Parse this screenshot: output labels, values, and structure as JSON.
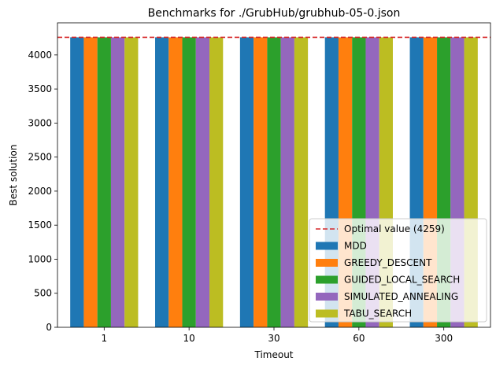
{
  "chart_data": {
    "type": "bar",
    "title": "Benchmarks for ./GrubHub/grubhub-05-0.json",
    "xlabel": "Timeout",
    "ylabel": "Best solution",
    "categories": [
      "1",
      "10",
      "30",
      "60",
      "300"
    ],
    "ylim": [
      0,
      4472
    ],
    "yticks": [
      0,
      500,
      1000,
      1500,
      2000,
      2500,
      3000,
      3500,
      4000
    ],
    "grid": false,
    "legend_position": "lower-right",
    "reference_line": {
      "label": "Optimal value (4259)",
      "value": 4259,
      "color": "#d62728",
      "style": "dashed"
    },
    "series": [
      {
        "name": "MDD",
        "color": "#1f77b4",
        "values": [
          4259,
          4259,
          4259,
          4259,
          4259
        ]
      },
      {
        "name": "GREEDY_DESCENT",
        "color": "#ff7f0e",
        "values": [
          4259,
          4259,
          4259,
          4259,
          4259
        ]
      },
      {
        "name": "GUIDED_LOCAL_SEARCH",
        "color": "#2ca02c",
        "values": [
          4259,
          4259,
          4259,
          4259,
          4259
        ]
      },
      {
        "name": "SIMULATED_ANNEALING",
        "color": "#9467bd",
        "values": [
          4259,
          4259,
          4259,
          4259,
          4259
        ]
      },
      {
        "name": "TABU_SEARCH",
        "color": "#bcbd22",
        "values": [
          4259,
          4259,
          4259,
          4259,
          4259
        ]
      }
    ]
  }
}
